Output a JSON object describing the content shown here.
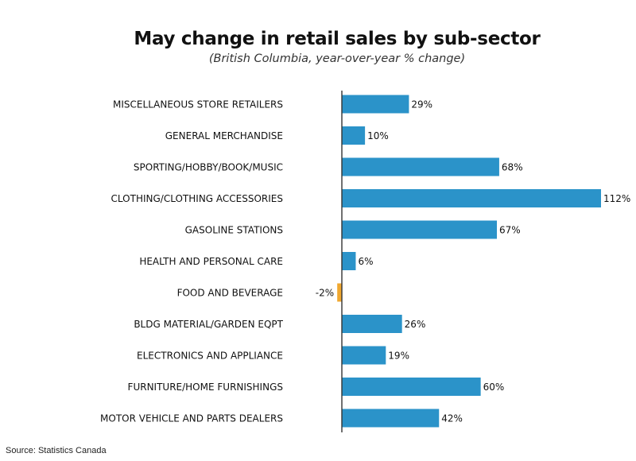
{
  "chart_data": {
    "type": "bar",
    "orientation": "horizontal",
    "title": "May change in retail sales by sub-sector",
    "subtitle": "(British Columbia, year-over-year % change)",
    "categories": [
      "MISCELLANEOUS STORE RETAILERS",
      "GENERAL MERCHANDISE",
      "SPORTING/HOBBY/BOOK/MUSIC",
      "CLOTHING/CLOTHING ACCESSORIES",
      "GASOLINE STATIONS",
      "HEALTH AND PERSONAL CARE",
      "FOOD AND BEVERAGE",
      "BLDG MATERIAL/GARDEN EQPT",
      "ELECTRONICS AND APPLIANCE",
      "FURNITURE/HOME FURNISHINGS",
      "MOTOR VEHICLE AND PARTS DEALERS"
    ],
    "values": [
      29,
      10,
      68,
      112,
      67,
      6,
      -2,
      26,
      19,
      60,
      42
    ],
    "data_labels": [
      "29%",
      "10%",
      "68%",
      "112%",
      "67%",
      "6%",
      "-2%",
      "26%",
      "19%",
      "60%",
      "42%"
    ],
    "colors": {
      "positive": "#2b93c9",
      "negative": "#f0a830",
      "axis": "#333333"
    },
    "grid": false,
    "legend": "none"
  },
  "source": "Source: Statistics Canada"
}
